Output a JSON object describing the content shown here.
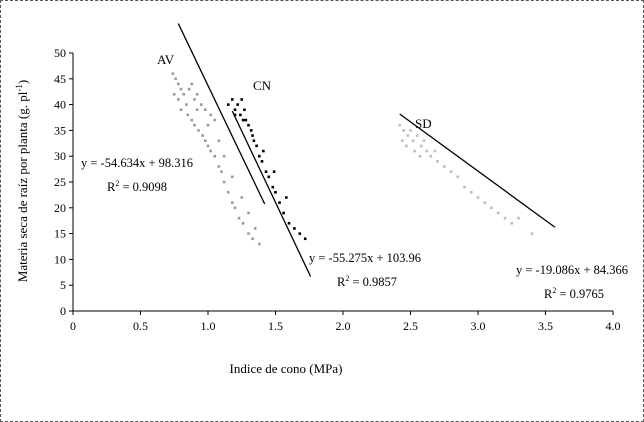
{
  "chart_data": {
    "type": "scatter",
    "xlabel": "Indice de cono   (MPa)",
    "ylabel": "Materia seca de raíz por planta (g. pl",
    "ylabel_sup": "-1",
    "ylabel_tail": ")",
    "xlim": [
      0,
      4.0
    ],
    "ylim": [
      0,
      50
    ],
    "x_ticks": [
      "0",
      "0.5",
      "1.0",
      "1.5",
      "2.0",
      "2.5",
      "3.0",
      "3.5",
      "4.0"
    ],
    "y_ticks": [
      "0",
      "5",
      "10",
      "15",
      "20",
      "25",
      "30",
      "35",
      "40",
      "45",
      "50"
    ],
    "grid": false,
    "legend": "none",
    "series": [
      {
        "name": "AV",
        "color": "#9a9a9a",
        "line": {
          "slope": -54.634,
          "intercept": 98.316,
          "x_start": 0.78,
          "x_end": 1.42
        },
        "equation": "y = -54.634x + 98.316",
        "r2_label": "R",
        "r2_value": " = 0.9098",
        "points": [
          [
            0.74,
            46
          ],
          [
            0.76,
            45
          ],
          [
            0.78,
            44
          ],
          [
            0.8,
            43
          ],
          [
            0.75,
            42
          ],
          [
            0.78,
            41
          ],
          [
            0.82,
            42
          ],
          [
            0.84,
            40
          ],
          [
            0.86,
            43
          ],
          [
            0.88,
            44
          ],
          [
            0.9,
            41
          ],
          [
            0.92,
            42
          ],
          [
            0.95,
            40
          ],
          [
            0.98,
            39
          ],
          [
            1.02,
            38
          ],
          [
            1.05,
            37
          ],
          [
            0.8,
            39
          ],
          [
            0.85,
            38
          ],
          [
            0.88,
            37
          ],
          [
            0.9,
            36
          ],
          [
            0.93,
            35
          ],
          [
            0.96,
            34
          ],
          [
            0.98,
            33
          ],
          [
            1.0,
            32
          ],
          [
            1.02,
            31
          ],
          [
            1.05,
            30
          ],
          [
            1.08,
            28
          ],
          [
            1.1,
            27
          ],
          [
            1.12,
            25
          ],
          [
            1.15,
            23
          ],
          [
            1.18,
            21
          ],
          [
            1.2,
            20
          ],
          [
            1.23,
            18
          ],
          [
            1.26,
            17
          ],
          [
            1.3,
            15
          ],
          [
            1.33,
            14
          ],
          [
            1.38,
            13
          ],
          [
            0.92,
            39
          ],
          [
            1.0,
            36
          ],
          [
            1.08,
            33
          ],
          [
            1.12,
            30
          ],
          [
            1.18,
            26
          ],
          [
            1.25,
            22
          ],
          [
            1.3,
            19
          ],
          [
            1.35,
            16
          ]
        ]
      },
      {
        "name": "CN",
        "color": "#000000",
        "line": {
          "slope": -55.275,
          "intercept": 103.96,
          "x_start": 1.18,
          "x_end": 1.76
        },
        "equation": "y = -55.275x + 103.96",
        "r2_label": "R",
        "r2_value": " = 0.9857",
        "points": [
          [
            1.15,
            40
          ],
          [
            1.18,
            41
          ],
          [
            1.2,
            39
          ],
          [
            1.22,
            40
          ],
          [
            1.24,
            38
          ],
          [
            1.25,
            41
          ],
          [
            1.27,
            39
          ],
          [
            1.28,
            37
          ],
          [
            1.3,
            36
          ],
          [
            1.32,
            35
          ],
          [
            1.34,
            33
          ],
          [
            1.36,
            32
          ],
          [
            1.38,
            30
          ],
          [
            1.4,
            29
          ],
          [
            1.43,
            27
          ],
          [
            1.45,
            26
          ],
          [
            1.48,
            24
          ],
          [
            1.5,
            23
          ],
          [
            1.53,
            21
          ],
          [
            1.56,
            19
          ],
          [
            1.6,
            17
          ],
          [
            1.64,
            16
          ],
          [
            1.68,
            15
          ],
          [
            1.72,
            14
          ],
          [
            1.2,
            38
          ],
          [
            1.26,
            37
          ],
          [
            1.33,
            34
          ],
          [
            1.41,
            31
          ],
          [
            1.49,
            27
          ],
          [
            1.58,
            22
          ]
        ]
      },
      {
        "name": "SD",
        "color": "#bdbdbd",
        "line": {
          "slope": -19.086,
          "intercept": 84.366,
          "x_start": 2.42,
          "x_end": 3.57
        },
        "equation": "y = -19.086x + 84.366",
        "r2_label": "R",
        "r2_value": " = 0.9765",
        "points": [
          [
            2.42,
            36
          ],
          [
            2.45,
            35
          ],
          [
            2.48,
            34
          ],
          [
            2.5,
            35
          ],
          [
            2.52,
            33
          ],
          [
            2.55,
            34
          ],
          [
            2.58,
            32
          ],
          [
            2.6,
            33
          ],
          [
            2.62,
            31
          ],
          [
            2.65,
            30
          ],
          [
            2.68,
            31
          ],
          [
            2.7,
            29
          ],
          [
            2.75,
            28
          ],
          [
            2.8,
            27
          ],
          [
            2.85,
            26
          ],
          [
            2.9,
            24
          ],
          [
            2.95,
            23
          ],
          [
            3.0,
            22
          ],
          [
            3.05,
            21
          ],
          [
            3.1,
            20
          ],
          [
            3.15,
            19
          ],
          [
            3.2,
            18
          ],
          [
            3.25,
            17
          ],
          [
            3.3,
            18
          ],
          [
            3.4,
            15
          ],
          [
            2.44,
            33
          ],
          [
            2.47,
            32
          ],
          [
            2.53,
            31
          ],
          [
            2.57,
            30
          ]
        ]
      }
    ]
  }
}
